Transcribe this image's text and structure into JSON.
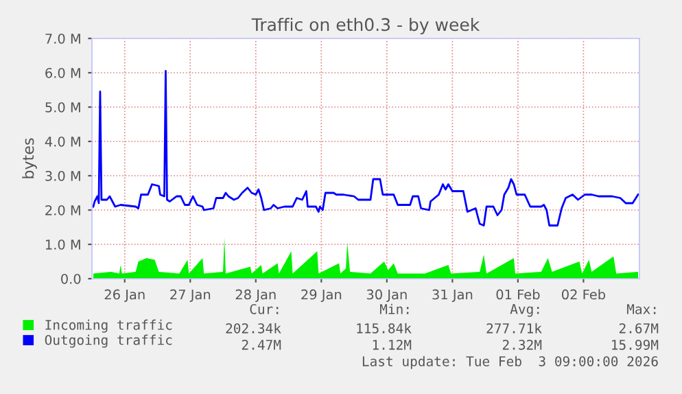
{
  "chart_data": {
    "type": "line",
    "title": "Traffic on eth0.3 - by week",
    "ylabel": "bytes",
    "xlim": [
      "2026-01-26T00:00",
      "2026-02-03T08:30"
    ],
    "xticks": [
      {
        "value": "2026-01-26T12:00",
        "label": "26 Jan"
      },
      {
        "value": "2026-01-27T12:00",
        "label": "27 Jan"
      },
      {
        "value": "2026-01-28T12:00",
        "label": "28 Jan"
      },
      {
        "value": "2026-01-29T12:00",
        "label": "29 Jan"
      },
      {
        "value": "2026-01-30T12:00",
        "label": "30 Jan"
      },
      {
        "value": "2026-01-31T12:00",
        "label": "31 Jan"
      },
      {
        "value": "2026-02-01T12:00",
        "label": "01 Feb"
      },
      {
        "value": "2026-02-02T12:00",
        "label": "02 Feb"
      }
    ],
    "ylim": [
      0,
      7
    ],
    "yticks": [
      {
        "value": 0,
        "label": "0.0"
      },
      {
        "value": 1,
        "label": "1.0 M"
      },
      {
        "value": 2,
        "label": "2.0 M"
      },
      {
        "value": 3,
        "label": "3.0 M"
      },
      {
        "value": 4,
        "label": "4.0 M"
      },
      {
        "value": 5,
        "label": "5.0 M"
      },
      {
        "value": 6,
        "label": "6.0 M"
      },
      {
        "value": 7,
        "label": "7.0 M"
      }
    ],
    "grid": true,
    "legend": "bottom left",
    "series": [
      {
        "name": "Incoming traffic",
        "type": "area",
        "color": "#00ee00",
        "x": [
          "2026-01-26T00:30",
          "2026-01-26T07:00",
          "2026-01-26T10:00",
          "2026-01-26T10:30",
          "2026-01-26T11:00",
          "2026-01-26T16:00",
          "2026-01-26T17:00",
          "2026-01-26T20:00",
          "2026-01-26T23:00",
          "2026-01-27T00:30",
          "2026-01-27T08:00",
          "2026-01-27T11:00",
          "2026-01-27T11:30",
          "2026-01-27T16:30",
          "2026-01-27T17:00",
          "2026-01-28T00:00",
          "2026-01-28T00:30",
          "2026-01-28T01:00",
          "2026-01-28T10:00",
          "2026-01-28T10:30",
          "2026-01-28T14:00",
          "2026-01-28T14:30",
          "2026-01-28T20:00",
          "2026-01-28T20:30",
          "2026-01-29T01:00",
          "2026-01-29T01:30",
          "2026-01-29T10:30",
          "2026-01-29T11:00",
          "2026-01-29T18:30",
          "2026-01-29T19:00",
          "2026-01-29T21:00",
          "2026-01-29T21:30",
          "2026-01-29T22:30",
          "2026-01-30T06:00",
          "2026-01-30T11:00",
          "2026-01-30T12:30",
          "2026-01-30T14:30",
          "2026-01-30T16:00",
          "2026-01-31T02:00",
          "2026-01-31T10:30",
          "2026-01-31T11:30",
          "2026-01-31T22:00",
          "2026-01-31T23:30",
          "2026-02-01T00:30",
          "2026-02-01T10:30",
          "2026-02-01T11:00",
          "2026-02-01T20:30",
          "2026-02-01T23:00",
          "2026-02-02T00:30",
          "2026-02-02T10:30",
          "2026-02-02T11:30",
          "2026-02-02T14:00",
          "2026-02-02T15:00",
          "2026-02-02T23:00",
          "2026-02-03T00:00",
          "2026-02-03T08:00"
        ],
        "values": [
          0.15,
          0.2,
          0.15,
          0.4,
          0.15,
          0.2,
          0.5,
          0.6,
          0.55,
          0.2,
          0.15,
          0.55,
          0.15,
          0.6,
          0.15,
          0.2,
          1.2,
          0.15,
          0.35,
          0.15,
          0.4,
          0.15,
          0.45,
          0.15,
          0.8,
          0.15,
          0.8,
          0.15,
          0.45,
          0.15,
          0.3,
          1.05,
          0.2,
          0.15,
          0.5,
          0.25,
          0.45,
          0.15,
          0.15,
          0.4,
          0.15,
          0.2,
          0.7,
          0.15,
          0.6,
          0.15,
          0.2,
          0.6,
          0.2,
          0.5,
          0.15,
          0.55,
          0.2,
          0.65,
          0.15,
          0.2
        ]
      },
      {
        "name": "Outgoing traffic",
        "color": "#0000ff",
        "x": [
          "2026-01-26T00:30",
          "2026-01-26T01:00",
          "2026-01-26T02:00",
          "2026-01-26T02:30",
          "2026-01-26T03:00",
          "2026-01-26T03:30",
          "2026-01-26T05:30",
          "2026-01-26T06:30",
          "2026-01-26T08:30",
          "2026-01-26T10:30",
          "2026-01-26T16:00",
          "2026-01-26T17:00",
          "2026-01-26T18:00",
          "2026-01-26T20:30",
          "2026-01-26T22:00",
          "2026-01-27T00:30",
          "2026-01-27T01:00",
          "2026-01-27T02:30",
          "2026-01-27T03:00",
          "2026-01-27T03:30",
          "2026-01-27T04:30",
          "2026-01-27T07:00",
          "2026-01-27T08:30",
          "2026-01-27T10:00",
          "2026-01-27T11:30",
          "2026-01-27T13:00",
          "2026-01-27T14:30",
          "2026-01-27T16:30",
          "2026-01-27T17:00",
          "2026-01-27T20:30",
          "2026-01-27T21:30",
          "2026-01-28T00:00",
          "2026-01-28T01:00",
          "2026-01-28T02:00",
          "2026-01-28T04:00",
          "2026-01-28T05:30",
          "2026-01-28T07:00",
          "2026-01-28T09:00",
          "2026-01-28T10:30",
          "2026-01-28T12:00",
          "2026-01-28T13:00",
          "2026-01-28T14:00",
          "2026-01-28T15:00",
          "2026-01-28T17:30",
          "2026-01-28T18:30",
          "2026-01-28T20:00",
          "2026-01-28T22:30",
          "2026-01-29T01:30",
          "2026-01-29T03:00",
          "2026-01-29T05:00",
          "2026-01-29T06:30",
          "2026-01-29T07:00",
          "2026-01-29T10:00",
          "2026-01-29T11:00",
          "2026-01-29T11:30",
          "2026-01-29T12:30",
          "2026-01-29T13:30",
          "2026-01-29T16:30",
          "2026-01-29T17:30",
          "2026-01-29T20:00",
          "2026-01-30T00:00",
          "2026-01-30T01:30",
          "2026-01-30T06:00",
          "2026-01-30T07:00",
          "2026-01-30T09:30",
          "2026-01-30T10:30",
          "2026-01-30T14:30",
          "2026-01-30T16:00",
          "2026-01-30T20:30",
          "2026-01-30T21:30",
          "2026-01-30T23:30",
          "2026-01-31T00:30",
          "2026-01-31T03:30",
          "2026-01-31T04:00",
          "2026-01-31T07:00",
          "2026-01-31T08:30",
          "2026-01-31T09:30",
          "2026-01-31T10:30",
          "2026-01-31T12:00",
          "2026-01-31T16:00",
          "2026-01-31T17:30",
          "2026-01-31T20:30",
          "2026-01-31T22:00",
          "2026-01-31T23:30",
          "2026-02-01T00:30",
          "2026-02-01T03:00",
          "2026-02-01T04:30",
          "2026-02-01T06:00",
          "2026-02-01T07:00",
          "2026-02-01T08:30",
          "2026-02-01T09:30",
          "2026-02-01T10:30",
          "2026-02-01T11:30",
          "2026-02-01T14:30",
          "2026-02-01T16:30",
          "2026-02-01T20:30",
          "2026-02-01T21:30",
          "2026-02-01T22:30",
          "2026-02-01T23:30",
          "2026-02-02T02:30",
          "2026-02-02T04:00",
          "2026-02-02T05:30",
          "2026-02-02T08:00",
          "2026-02-02T10:00",
          "2026-02-02T12:30",
          "2026-02-02T15:00",
          "2026-02-02T17:30",
          "2026-02-02T22:30",
          "2026-02-03T01:30",
          "2026-02-03T03:30",
          "2026-02-03T06:00",
          "2026-02-03T08:00"
        ],
        "values": [
          2.1,
          2.25,
          2.4,
          2.2,
          5.45,
          2.3,
          2.3,
          2.4,
          2.1,
          2.15,
          2.1,
          2.05,
          2.45,
          2.45,
          2.75,
          2.7,
          2.45,
          2.4,
          6.05,
          2.3,
          2.25,
          2.4,
          2.4,
          2.15,
          2.15,
          2.4,
          2.15,
          2.1,
          2.0,
          2.05,
          2.35,
          2.35,
          2.5,
          2.4,
          2.3,
          2.35,
          2.5,
          2.65,
          2.5,
          2.45,
          2.6,
          2.35,
          2.0,
          2.05,
          2.15,
          2.05,
          2.1,
          2.1,
          2.35,
          2.3,
          2.55,
          2.1,
          2.1,
          1.95,
          2.1,
          2.0,
          2.5,
          2.5,
          2.45,
          2.45,
          2.4,
          2.3,
          2.3,
          2.9,
          2.9,
          2.45,
          2.45,
          2.15,
          2.15,
          2.4,
          2.4,
          2.05,
          2.0,
          2.25,
          2.45,
          2.75,
          2.6,
          2.75,
          2.55,
          2.55,
          1.95,
          2.05,
          1.6,
          1.55,
          2.1,
          2.1,
          1.85,
          2.0,
          2.45,
          2.65,
          2.9,
          2.75,
          2.45,
          2.45,
          2.1,
          2.1,
          2.15,
          2.0,
          1.55,
          1.55,
          2.05,
          2.35,
          2.45,
          2.3,
          2.45,
          2.45,
          2.4,
          2.4,
          2.35,
          2.2,
          2.2,
          2.45
        ]
      }
    ],
    "annotations": [
      "Cur:",
      "Min:",
      "Avg:",
      "Max:",
      "202.34k",
      "115.84k",
      "277.71k",
      "2.67M",
      "2.47M",
      "1.12M",
      "2.32M",
      "15.99M",
      "Last update: Tue Feb  3 09:00:00 2026"
    ]
  }
}
